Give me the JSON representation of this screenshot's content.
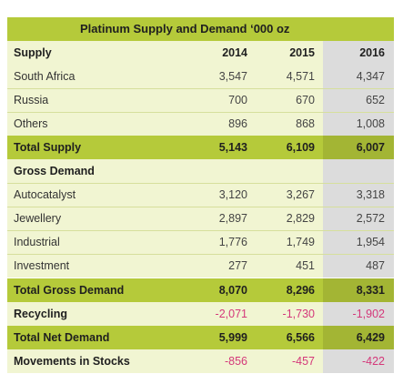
{
  "title": "Platinum Supply and Demand ‘000 oz",
  "header": {
    "label": "Supply",
    "y2014": "2014",
    "y2015": "2015",
    "y2016": "2016"
  },
  "rows": [
    {
      "label": "South Africa",
      "v2014": "3,547",
      "v2015": "4,571",
      "v2016": "4,347"
    },
    {
      "label": "Russia",
      "v2014": "700",
      "v2015": "670",
      "v2016": "652"
    },
    {
      "label": "Others",
      "v2014": "896",
      "v2015": "868",
      "v2016": "1,008"
    },
    {
      "label": "Total Supply",
      "v2014": "5,143",
      "v2015": "6,109",
      "v2016": "6,007"
    },
    {
      "label": "Gross Demand",
      "v2014": "",
      "v2015": "",
      "v2016": ""
    },
    {
      "label": "Autocatalyst",
      "v2014": "3,120",
      "v2015": "3,267",
      "v2016": "3,318"
    },
    {
      "label": "Jewellery",
      "v2014": "2,897",
      "v2015": "2,829",
      "v2016": "2,572"
    },
    {
      "label": "Industrial",
      "v2014": "1,776",
      "v2015": "1,749",
      "v2016": "1,954"
    },
    {
      "label": "Investment",
      "v2014": "277",
      "v2015": "451",
      "v2016": "487"
    },
    {
      "label": "Total Gross Demand",
      "v2014": "8,070",
      "v2015": "8,296",
      "v2016": "8,331"
    },
    {
      "label": "Recycling",
      "v2014": "-2,071",
      "v2015": "-1,730",
      "v2016": "-1,902"
    },
    {
      "label": "Total Net Demand",
      "v2014": "5,999",
      "v2015": "6,566",
      "v2016": "6,429"
    },
    {
      "label": "Movements in Stocks",
      "v2014": "-856",
      "v2015": "-457",
      "v2016": "-422"
    }
  ],
  "colors": {
    "accent": "#b5ca3a",
    "light": "#f1f5d2",
    "col2016": "#dcdcdc",
    "negative": "#d4387a"
  }
}
